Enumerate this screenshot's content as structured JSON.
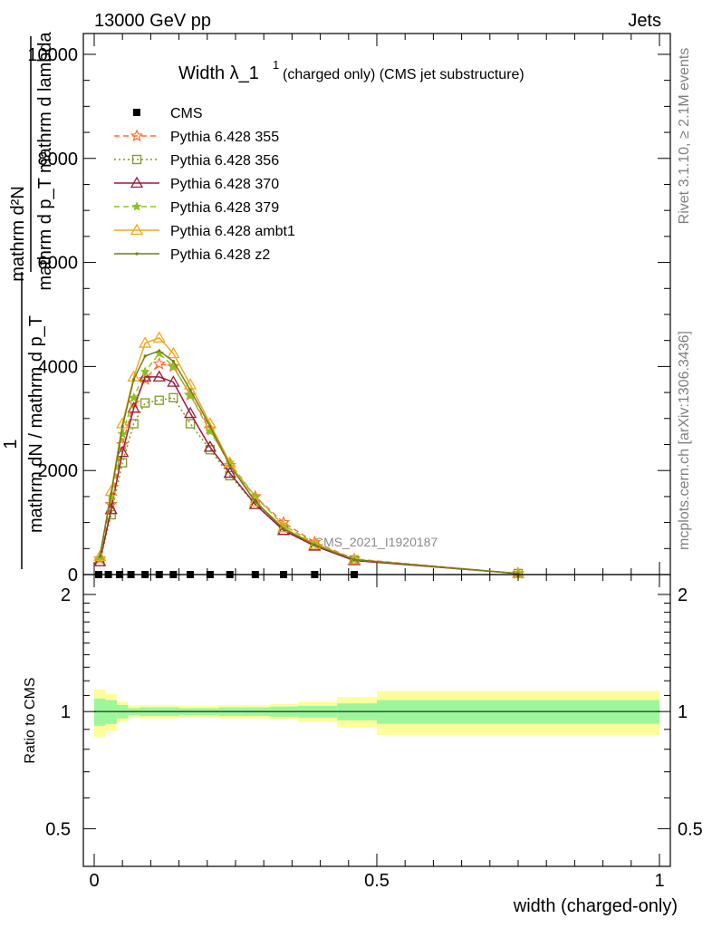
{
  "header": {
    "left": "13000 GeV pp",
    "right": "Jets"
  },
  "side_labels": {
    "rivet": "Rivet 3.1.10, ≥ 2.1M events",
    "mcplots": "mcplots.cern.ch [arXiv:1306.3436]"
  },
  "watermark": "CMS_2021_I1920187",
  "chart_data": [
    {
      "type": "line",
      "title_main": "Width λ_1",
      "title_sup": "1",
      "title_rest": "(charged only) (CMS jet substructure)",
      "ylabel_top": "mathrm d²N",
      "ylabel_top_den": "mathrm d p_T mathrm d lambda",
      "ylabel_pre": "1",
      "ylabel_pre_den": "mathrm dN / mathrm d p_T",
      "ylim": [
        0,
        10400
      ],
      "yticks": [
        0,
        2000,
        4000,
        6000,
        8000,
        10000
      ],
      "yticklabels": [
        "0",
        "2000",
        "4000",
        "6000",
        "8000",
        "10000"
      ],
      "xlim": [
        -0.02,
        1.0
      ],
      "legend_position": "top-left",
      "cms": {
        "name": "CMS",
        "x": [
          0.008,
          0.025,
          0.045,
          0.065,
          0.09,
          0.115,
          0.14,
          0.17,
          0.205,
          0.24,
          0.285,
          0.335,
          0.39,
          0.46
        ],
        "y": [
          0,
          0,
          0,
          0,
          0,
          0,
          0,
          0,
          0,
          0,
          0,
          0,
          0,
          0
        ]
      },
      "series": [
        {
          "name": "Pythia 6.428 355",
          "color": "#ff6f2e",
          "dash": "6,4",
          "marker": "star-open",
          "x": [
            0.01,
            0.03,
            0.05,
            0.07,
            0.09,
            0.115,
            0.14,
            0.17,
            0.205,
            0.24,
            0.285,
            0.335,
            0.39,
            0.46,
            0.75
          ],
          "y": [
            300,
            1350,
            2500,
            3300,
            3750,
            4050,
            4000,
            3450,
            2800,
            2100,
            1500,
            1000,
            620,
            300,
            20
          ]
        },
        {
          "name": "Pythia 6.428 356",
          "color": "#7d9a23",
          "dash": "2,3",
          "marker": "square-open",
          "x": [
            0.01,
            0.03,
            0.05,
            0.07,
            0.09,
            0.115,
            0.14,
            0.17,
            0.205,
            0.24,
            0.285,
            0.335,
            0.39,
            0.46,
            0.75
          ],
          "y": [
            250,
            1150,
            2150,
            2900,
            3300,
            3350,
            3400,
            2900,
            2400,
            1900,
            1350,
            850,
            550,
            280,
            20
          ]
        },
        {
          "name": "Pythia 6.428 370",
          "color": "#9b1b3a",
          "dash": "",
          "marker": "triangle-open",
          "x": [
            0.01,
            0.03,
            0.05,
            0.07,
            0.09,
            0.115,
            0.14,
            0.17,
            0.205,
            0.24,
            0.285,
            0.335,
            0.39,
            0.46,
            0.75
          ],
          "y": [
            250,
            1250,
            2350,
            3200,
            3800,
            3800,
            3700,
            3100,
            2450,
            1950,
            1350,
            850,
            550,
            270,
            20
          ]
        },
        {
          "name": "Pythia 6.428 379",
          "color": "#8cc21f",
          "dash": "6,4",
          "marker": "star-filled",
          "x": [
            0.01,
            0.03,
            0.05,
            0.07,
            0.09,
            0.115,
            0.14,
            0.17,
            0.205,
            0.24,
            0.285,
            0.335,
            0.39,
            0.46,
            0.75
          ],
          "y": [
            300,
            1500,
            2700,
            3400,
            3900,
            4250,
            4000,
            3450,
            2750,
            2150,
            1500,
            950,
            600,
            290,
            20
          ]
        },
        {
          "name": "Pythia 6.428 ambt1",
          "color": "#f2a81d",
          "dash": "",
          "marker": "triangle-open",
          "x": [
            0.01,
            0.03,
            0.05,
            0.07,
            0.09,
            0.115,
            0.14,
            0.17,
            0.205,
            0.24,
            0.285,
            0.335,
            0.39,
            0.46,
            0.75
          ],
          "y": [
            350,
            1600,
            2900,
            3800,
            4450,
            4550,
            4250,
            3650,
            2900,
            2150,
            1400,
            900,
            580,
            290,
            20
          ]
        },
        {
          "name": "Pythia 6.428 z2",
          "color": "#6e7d1c",
          "dash": "",
          "marker": "dot",
          "x": [
            0.01,
            0.03,
            0.05,
            0.07,
            0.09,
            0.115,
            0.14,
            0.17,
            0.205,
            0.24,
            0.285,
            0.335,
            0.39,
            0.46,
            0.75
          ],
          "y": [
            350,
            1550,
            2850,
            3750,
            4200,
            4300,
            4100,
            3550,
            2850,
            2100,
            1400,
            880,
            570,
            285,
            20
          ]
        }
      ]
    },
    {
      "type": "area",
      "ylabel": "Ratio to CMS",
      "xlabel": "width (charged-only)",
      "xlim": [
        -0.02,
        1.0
      ],
      "xticks": [
        0,
        0.5,
        1
      ],
      "xticklabels": [
        "0",
        "0.5",
        "1"
      ],
      "ylim": [
        0.4,
        2.25
      ],
      "yticks": [
        0.5,
        1,
        2
      ],
      "yticklabels": [
        "0.5",
        "1",
        "2"
      ],
      "band_edges": [
        0.0,
        0.02,
        0.04,
        0.06,
        0.08,
        0.1,
        0.13,
        0.15,
        0.19,
        0.22,
        0.26,
        0.31,
        0.36,
        0.43,
        0.5,
        1.0
      ],
      "inner_lo": [
        0.92,
        0.93,
        0.96,
        0.98,
        0.975,
        0.975,
        0.975,
        0.98,
        0.98,
        0.975,
        0.975,
        0.97,
        0.965,
        0.95,
        0.93
      ],
      "inner_hi": [
        1.08,
        1.07,
        1.04,
        1.02,
        1.025,
        1.025,
        1.025,
        1.02,
        1.02,
        1.025,
        1.025,
        1.03,
        1.035,
        1.05,
        1.07
      ],
      "outer_lo": [
        0.86,
        0.89,
        0.94,
        0.965,
        0.96,
        0.96,
        0.96,
        0.965,
        0.965,
        0.96,
        0.96,
        0.955,
        0.94,
        0.91,
        0.87
      ],
      "outer_hi": [
        1.14,
        1.11,
        1.06,
        1.035,
        1.04,
        1.04,
        1.04,
        1.035,
        1.035,
        1.04,
        1.04,
        1.045,
        1.06,
        1.09,
        1.13
      ],
      "inner_color": "#9cf79c",
      "outer_color": "#fdfd9c",
      "reference": 1
    }
  ]
}
